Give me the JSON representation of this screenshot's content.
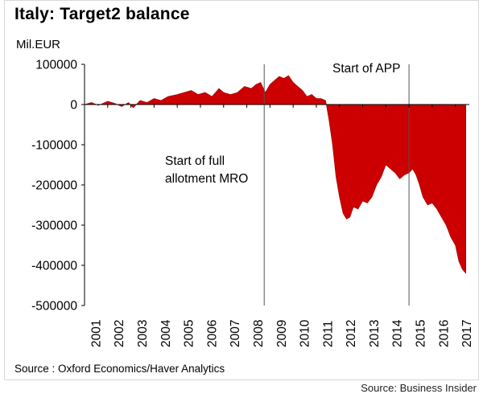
{
  "title": "Italy: Target2 balance",
  "ylabel": "Mil.EUR",
  "source": "Source : Oxford Economics/Haver Analytics",
  "credit": "Source: Business Insider",
  "annotations": {
    "mro_line1": "Start of full",
    "mro_line2": "allotment MRO",
    "app": "Start of APP"
  },
  "colors": {
    "area": "#cc0000",
    "axis": "#000000",
    "marker": "#555555"
  },
  "chart_data": {
    "type": "area",
    "title": "Italy: Target2 balance",
    "ylabel": "Mil.EUR",
    "ylim": [
      -500000,
      100000
    ],
    "yticks": [
      100000,
      0,
      -100000,
      -200000,
      -300000,
      -400000,
      -500000
    ],
    "ytick_labels": [
      "100000",
      "0",
      "-100000",
      "-200000",
      "-300000",
      "-400000",
      "-500000"
    ],
    "xlim": [
      2001,
      2017.6
    ],
    "xticks": [
      "2001",
      "2002",
      "2003",
      "2004",
      "2005",
      "2006",
      "2007",
      "2008",
      "2009",
      "2010",
      "2011",
      "2012",
      "2013",
      "2014",
      "2015",
      "2016",
      "2017"
    ],
    "grid": false,
    "series": [
      {
        "x": [
          2001.0,
          2001.3,
          2001.6,
          2002.0,
          2002.3,
          2002.6,
          2002.9,
          2003.1,
          2003.4,
          2003.7,
          2004.0,
          2004.3,
          2004.6,
          2005.0,
          2005.3,
          2005.6,
          2005.9,
          2006.2,
          2006.5,
          2006.8,
          2007.0,
          2007.3,
          2007.6,
          2007.9,
          2008.2,
          2008.4,
          2008.6,
          2008.8,
          2009.0,
          2009.2,
          2009.4,
          2009.6,
          2009.8,
          2010.0,
          2010.2,
          2010.4,
          2010.6,
          2010.8,
          2011.0,
          2011.2,
          2011.4,
          2011.55,
          2011.7,
          2011.85,
          2012.0,
          2012.15,
          2012.3,
          2012.45,
          2012.6,
          2012.8,
          2013.0,
          2013.2,
          2013.4,
          2013.6,
          2013.8,
          2014.0,
          2014.2,
          2014.4,
          2014.6,
          2014.8,
          2015.0,
          2015.15,
          2015.3,
          2015.45,
          2015.6,
          2015.8,
          2016.0,
          2016.2,
          2016.4,
          2016.6,
          2016.8,
          2017.0,
          2017.15,
          2017.3,
          2017.45
        ],
        "y": [
          0,
          5000,
          -2000,
          8000,
          3000,
          -5000,
          5000,
          -8000,
          10000,
          5000,
          15000,
          10000,
          20000,
          25000,
          30000,
          35000,
          25000,
          30000,
          20000,
          40000,
          30000,
          25000,
          30000,
          45000,
          40000,
          50000,
          55000,
          30000,
          50000,
          60000,
          70000,
          65000,
          72000,
          55000,
          45000,
          35000,
          20000,
          25000,
          15000,
          15000,
          10000,
          -40000,
          -100000,
          -180000,
          -230000,
          -270000,
          -285000,
          -280000,
          -255000,
          -260000,
          -240000,
          -245000,
          -230000,
          -200000,
          -180000,
          -150000,
          -160000,
          -170000,
          -185000,
          -175000,
          -170000,
          -160000,
          -175000,
          -200000,
          -230000,
          -250000,
          -245000,
          -260000,
          -280000,
          -300000,
          -330000,
          -350000,
          -390000,
          -410000,
          -420000
        ]
      }
    ],
    "markers": [
      {
        "x": 2008.75,
        "label": "Start of full allotment MRO"
      },
      {
        "x": 2015.0,
        "label": "Start of APP"
      }
    ]
  }
}
